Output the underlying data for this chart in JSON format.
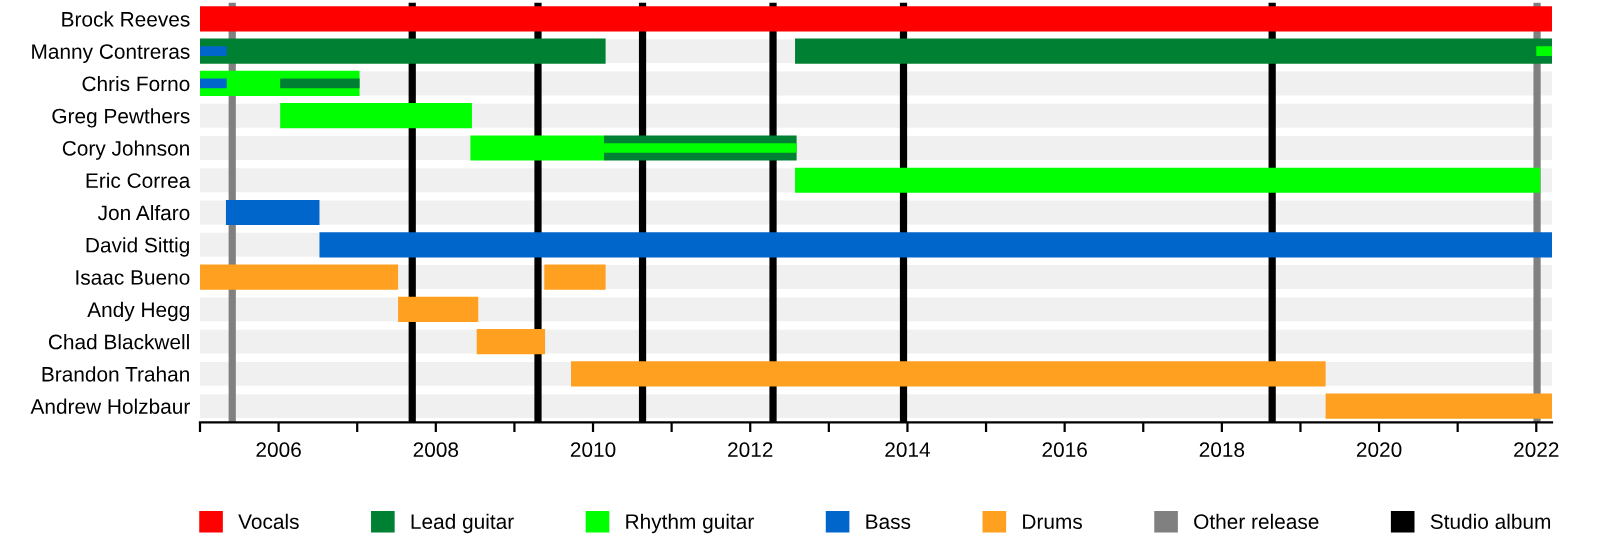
{
  "chart_data": {
    "type": "bar",
    "orientation": "horizontal",
    "categories": [
      "Brock Reeves",
      "Manny Contreras",
      "Chris Forno",
      "Greg Pewthers",
      "Cory Johnson",
      "Eric Correa",
      "Jon Alfaro",
      "David Sittig",
      "Isaac Bueno",
      "Andy Hegg",
      "Chad Blackwell",
      "Brandon Trahan",
      "Andrew Holzbaur"
    ],
    "series": [
      {
        "name": "Vocals",
        "color": "#ff0000",
        "base": [
          2005,
          null,
          null,
          null,
          null,
          null,
          null,
          null,
          null,
          null,
          null,
          null,
          null
        ],
        "values": [
          17.2,
          null,
          null,
          null,
          null,
          null,
          null,
          null,
          null,
          null,
          null,
          null,
          null
        ]
      },
      {
        "name": "Lead guitar",
        "color": "#008033",
        "base": [
          null,
          2005,
          null,
          null,
          2010.14,
          null,
          null,
          null,
          null,
          null,
          null,
          null,
          null
        ],
        "values": [
          null,
          5.16,
          null,
          null,
          2.45,
          null,
          null,
          null,
          null,
          null,
          null,
          null,
          null
        ]
      },
      {
        "color": "#008033",
        "base": [
          null,
          2012.57,
          null,
          null,
          null,
          null,
          null,
          null,
          null,
          null,
          null,
          null,
          null
        ],
        "values": [
          null,
          9.63,
          null,
          null,
          null,
          null,
          null,
          null,
          null,
          null,
          null,
          null,
          null
        ]
      },
      {
        "name": "Rhythm guitar",
        "color": "#00ff00",
        "base": [
          null,
          null,
          2005,
          2006.02,
          2008.44,
          2012.57,
          null,
          null,
          null,
          null,
          null,
          null,
          null
        ],
        "values": [
          null,
          null,
          2.03,
          2.44,
          1.7,
          9.48,
          null,
          null,
          null,
          null,
          null,
          null,
          null
        ]
      },
      {
        "name": "Bass",
        "color": "#0066cc",
        "base": [
          null,
          2005,
          2005,
          null,
          null,
          null,
          2005.33,
          2006.52,
          null,
          null,
          null,
          null,
          null
        ],
        "values": [
          null,
          0.34,
          0.34,
          null,
          null,
          null,
          1.19,
          15.68,
          null,
          null,
          null,
          null,
          null
        ]
      },
      {
        "name": "Drums",
        "color": "#ffa020",
        "base": [
          null,
          null,
          null,
          null,
          null,
          null,
          null,
          null,
          2005,
          2007.52,
          2008.52,
          2009.72,
          2019.32
        ],
        "values": [
          null,
          null,
          null,
          null,
          null,
          null,
          null,
          null,
          2.52,
          1.02,
          0.87,
          9.6,
          2.88
        ]
      },
      {
        "color": "#ffa020",
        "base": [
          null,
          null,
          null,
          null,
          null,
          null,
          null,
          null,
          2009.38,
          null,
          null,
          null,
          null
        ],
        "values": [
          null,
          null,
          null,
          null,
          null,
          null,
          null,
          null,
          0.78,
          null,
          null,
          null,
          null
        ]
      },
      {
        "color": "#008033",
        "base": [
          null,
          null,
          2006.02,
          null,
          null,
          null,
          null,
          null,
          null,
          null,
          null,
          null,
          null
        ],
        "values": [
          null,
          null,
          1.01,
          null,
          null,
          null,
          null,
          null,
          null,
          null,
          null,
          null,
          null
        ]
      },
      {
        "color": "#00ff00",
        "base": [
          null,
          2022.0,
          null,
          null,
          2010.14,
          null,
          null,
          null,
          null,
          null,
          null,
          null,
          null
        ],
        "values": [
          null,
          0.2,
          null,
          null,
          2.45,
          null,
          null,
          null,
          null,
          null,
          null,
          null,
          null
        ]
      }
    ],
    "xlim": [
      2005,
      2022.2
    ],
    "xticks": [
      {
        "value": 2005,
        "label": null
      },
      2006,
      {
        "value": 2007,
        "label": null
      },
      2008,
      {
        "value": 2009,
        "label": null
      },
      2010,
      {
        "value": 2011,
        "label": null
      },
      2012,
      {
        "value": 2013,
        "label": null
      },
      2014,
      {
        "value": 2015,
        "label": null
      },
      2016,
      {
        "value": 2017,
        "label": null
      },
      2018,
      {
        "value": 2019,
        "label": null
      },
      2020,
      {
        "value": 2021,
        "label": null
      },
      2022
    ],
    "ref_lines": [
      {
        "axis": "x",
        "value": 2005.41,
        "label": "Other release",
        "color": "#808080"
      },
      {
        "axis": "x",
        "value": 2022.01,
        "color": "#808080"
      },
      {
        "axis": "x",
        "value": 2007.7,
        "label": "Studio album",
        "color": "#000000"
      },
      {
        "axis": "x",
        "value": 2009.3,
        "color": "#000000"
      },
      {
        "axis": "x",
        "value": 2010.63,
        "color": "#000000"
      },
      {
        "axis": "x",
        "value": 2012.29,
        "color": "#000000"
      },
      {
        "axis": "x",
        "value": 2013.95,
        "color": "#000000"
      },
      {
        "axis": "x",
        "value": 2018.64,
        "color": "#000000"
      }
    ],
    "grid": "y",
    "legend": "bottom"
  }
}
